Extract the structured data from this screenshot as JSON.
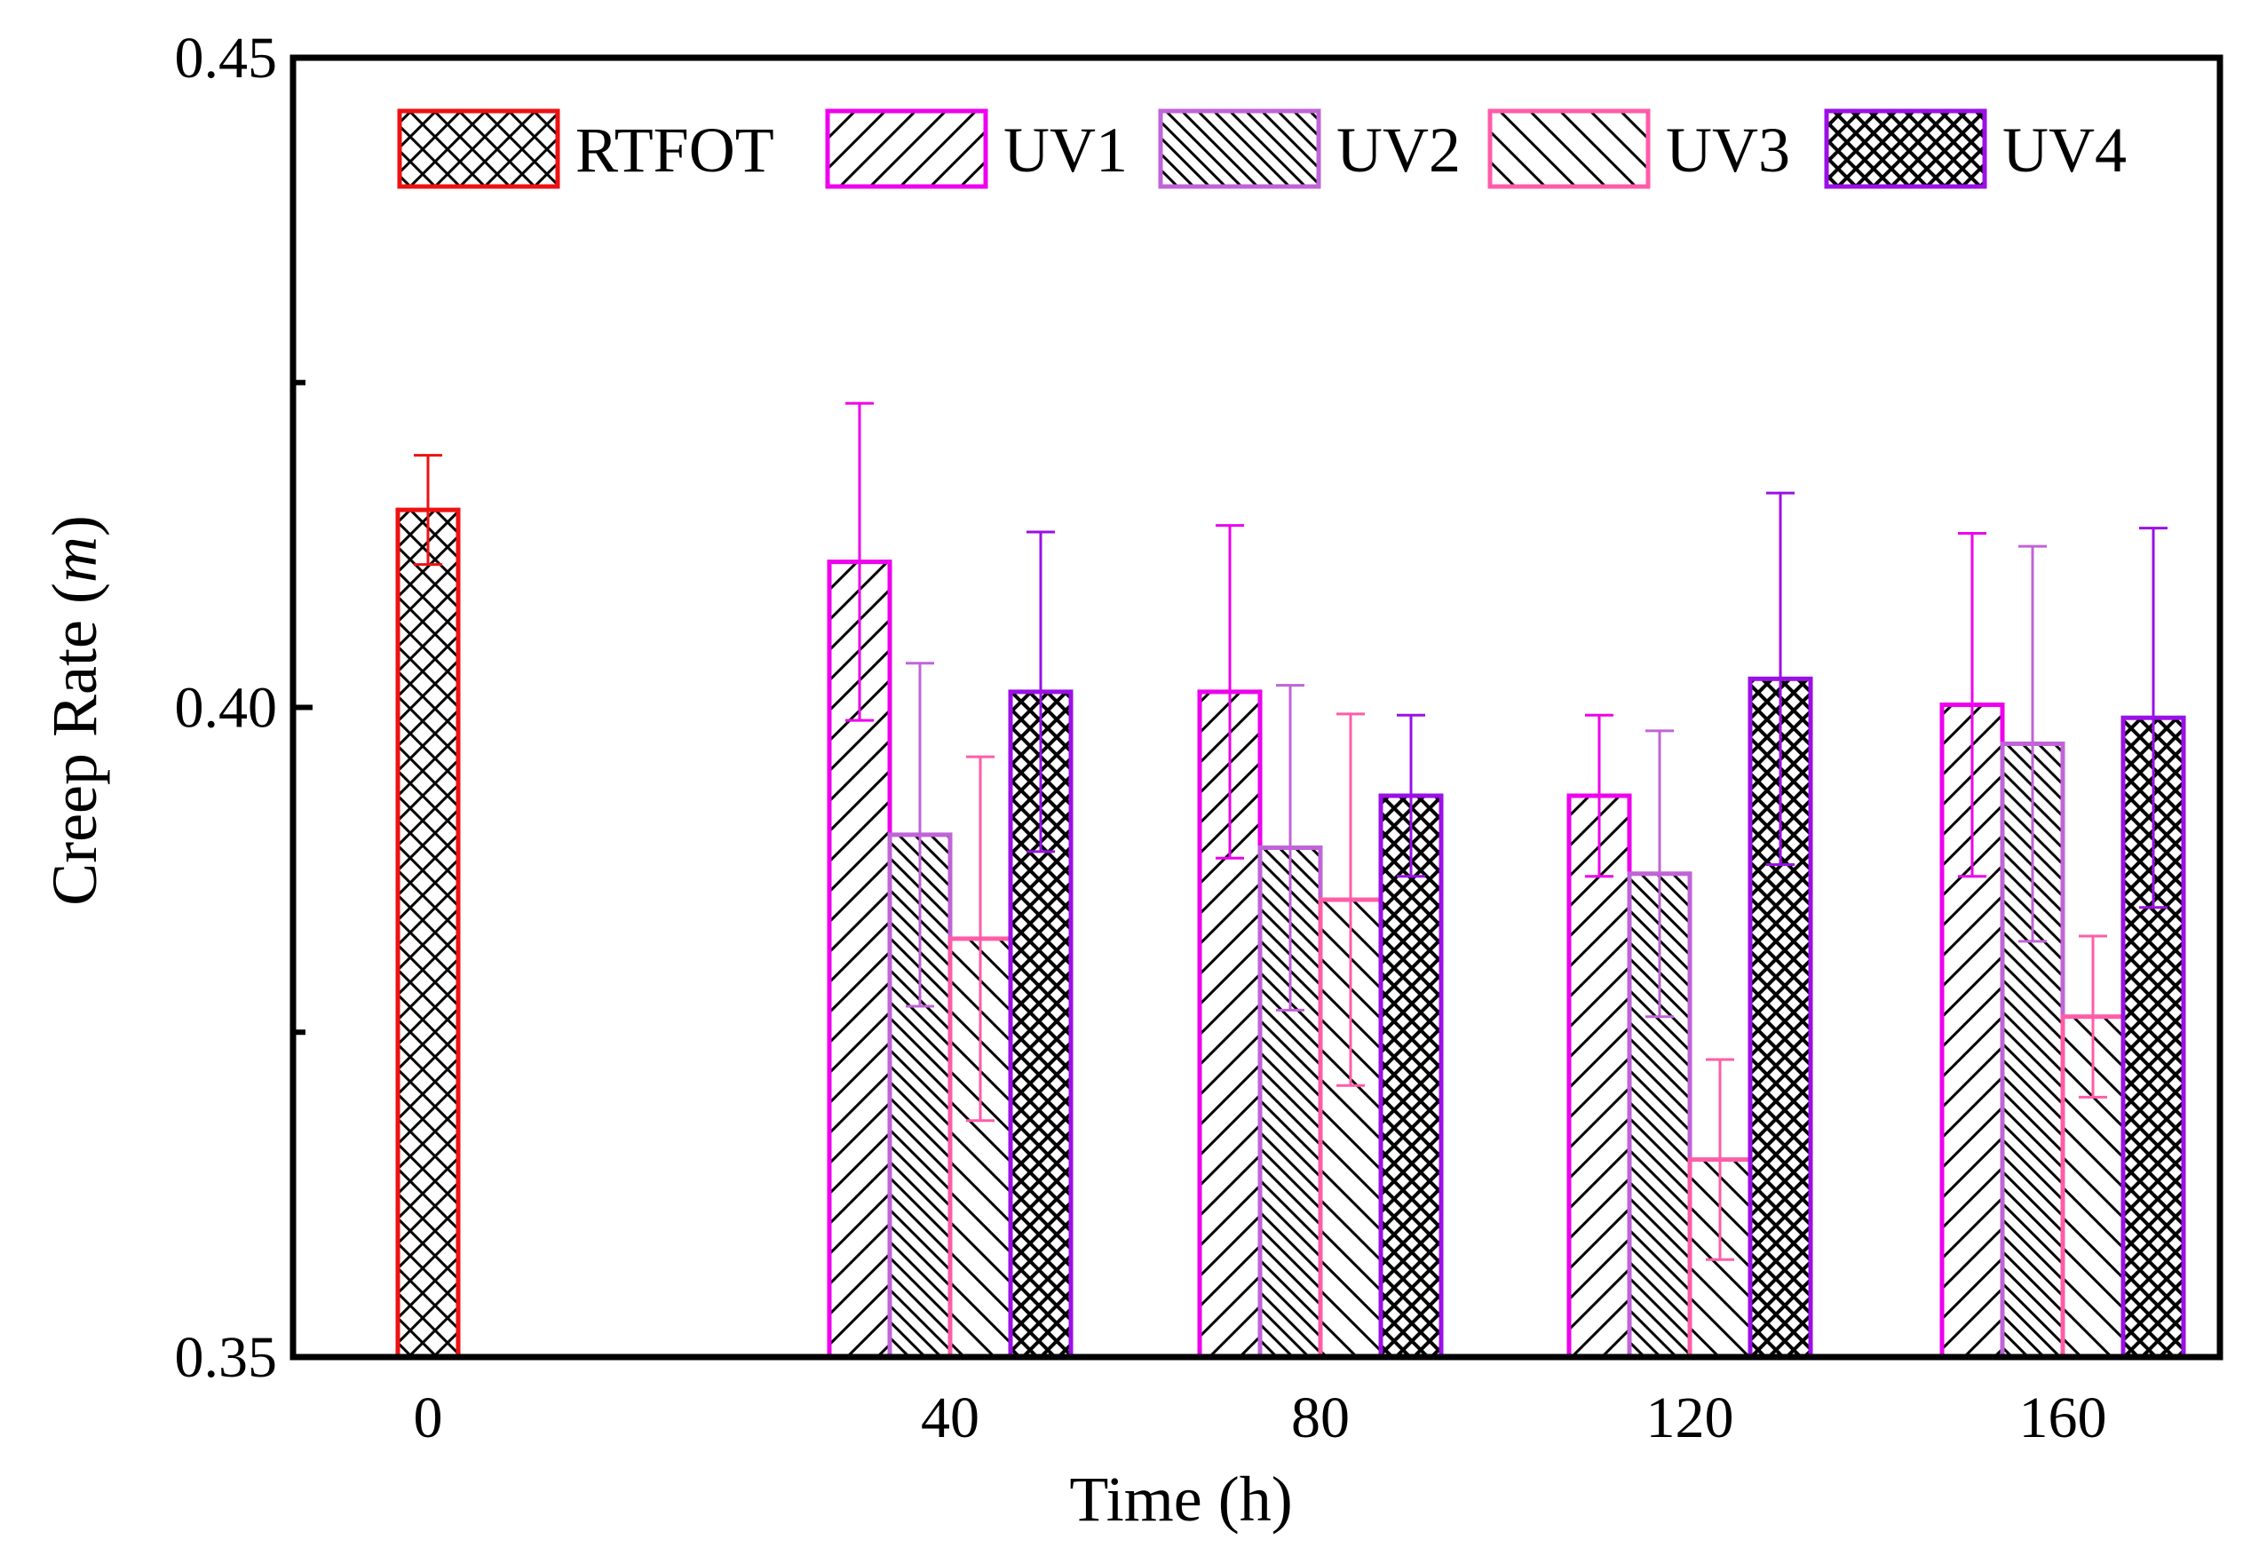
{
  "chart_data": {
    "type": "bar",
    "title": "",
    "xlabel": "Time (h)",
    "ylabel_main": "Creep Rate (",
    "ylabel_italic": "m",
    "ylabel_close": ")",
    "ylim": [
      0.35,
      0.45
    ],
    "yticks": [
      0.35,
      0.4,
      0.45
    ],
    "ytick_labels": [
      "0.35",
      "0.40",
      "0.45"
    ],
    "yminor_ticks": [
      0.375,
      0.425
    ],
    "categories": [
      "0",
      "40",
      "80",
      "120",
      "160"
    ],
    "grid": false,
    "legend_position": "top",
    "series": [
      {
        "name": "RTFOT",
        "color": "#ee1111",
        "pattern": "crosshatch",
        "values": [
          0.4152,
          null,
          null,
          null,
          null
        ],
        "errors": [
          0.0042,
          null,
          null,
          null,
          null
        ]
      },
      {
        "name": "UV1",
        "color": "#ee00ee",
        "pattern": "diagonal-up",
        "values": [
          null,
          0.4112,
          0.4012,
          0.3932,
          0.4002
        ],
        "errors": [
          null,
          0.0122,
          0.0128,
          0.0062,
          0.0132
        ]
      },
      {
        "name": "UV2",
        "color": "#c064d8",
        "pattern": "diagonal-down-dense",
        "values": [
          null,
          0.3902,
          0.3892,
          0.3872,
          0.3972
        ],
        "errors": [
          null,
          0.0132,
          0.0125,
          0.011,
          0.0152
        ]
      },
      {
        "name": "UV3",
        "color": "#ff5ca8",
        "pattern": "diagonal-down",
        "values": [
          null,
          0.3822,
          0.3852,
          0.3652,
          0.3762
        ],
        "errors": [
          null,
          0.014,
          0.0143,
          0.0077,
          0.0062
        ]
      },
      {
        "name": "UV4",
        "color": "#9a10e6",
        "pattern": "crosshatch-dense",
        "values": [
          null,
          0.4012,
          0.3932,
          0.4022,
          0.3992
        ],
        "errors": [
          null,
          0.0123,
          0.0062,
          0.0143,
          0.0146
        ]
      }
    ]
  }
}
